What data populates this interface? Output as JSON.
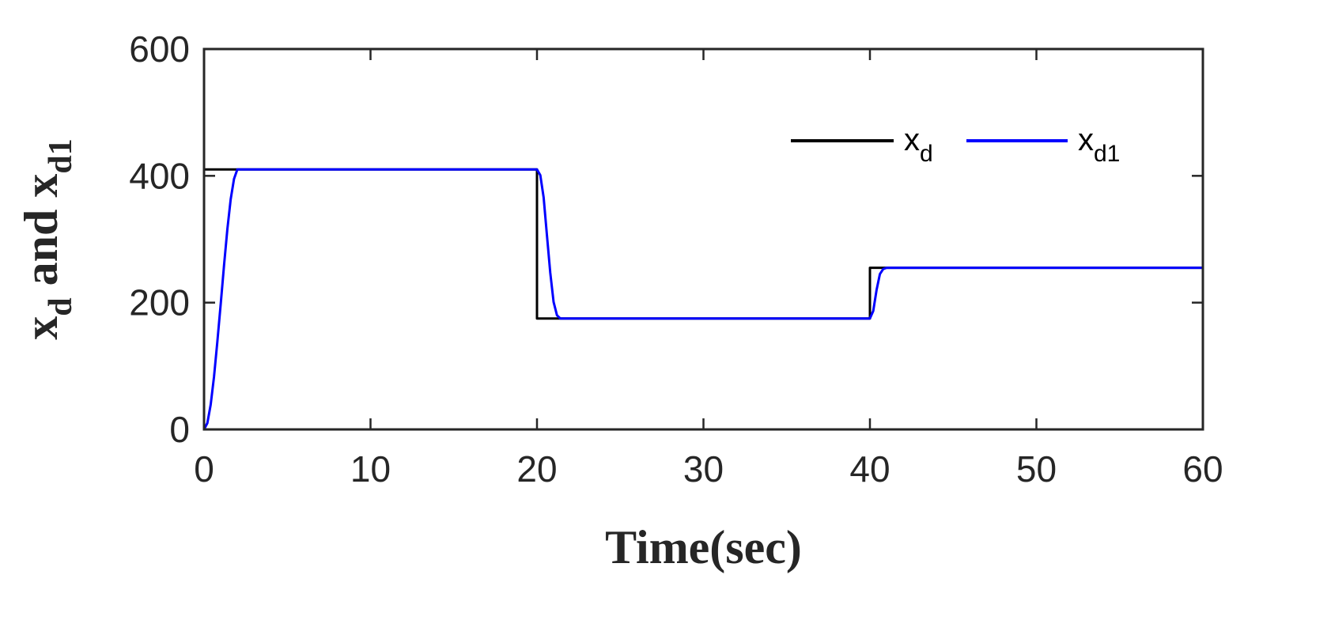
{
  "chart_data": {
    "type": "line",
    "xlabel": "Time(sec)",
    "ylabel": {
      "parts": [
        {
          "text": "x",
          "sub": "d"
        },
        {
          "text": " and x",
          "sub": "d1"
        }
      ]
    },
    "xlim": [
      0,
      60
    ],
    "ylim": [
      0,
      600
    ],
    "xticks": [
      0,
      10,
      20,
      30,
      40,
      50,
      60
    ],
    "yticks": [
      0,
      200,
      400,
      600
    ],
    "xtick_labels": [
      "0",
      "10",
      "20",
      "30",
      "40",
      "50",
      "60"
    ],
    "ytick_labels": [
      "0",
      "200",
      "400",
      "600"
    ],
    "grid": false,
    "legend": {
      "placement": "top-right",
      "orientation": "horizontal",
      "entries": [
        {
          "base": "x",
          "sub": "d",
          "color": "#000000"
        },
        {
          "base": "x",
          "sub": "d1",
          "color": "#0000ff"
        }
      ]
    },
    "series": [
      {
        "label_base": "x",
        "label_sub": "d",
        "color": "#000000",
        "x": [
          0,
          0,
          20,
          20,
          40,
          40,
          60
        ],
        "y": [
          0,
          410,
          410,
          175,
          175,
          255,
          255
        ]
      },
      {
        "label_base": "x",
        "label_sub": "d1",
        "color": "#0000ff",
        "x": [
          0,
          0.2,
          0.4,
          0.6,
          0.8,
          1.0,
          1.2,
          1.4,
          1.6,
          1.8,
          2.0,
          20.0,
          20.2,
          20.4,
          20.6,
          20.8,
          21.0,
          21.2,
          21.4,
          40.0,
          40.2,
          40.4,
          40.6,
          40.8,
          41.0,
          60.0
        ],
        "y": [
          0,
          10,
          39,
          83,
          138,
          198,
          259,
          316,
          363,
          395,
          410,
          410,
          401,
          366,
          306,
          247,
          201,
          180,
          175,
          175,
          187,
          220,
          245,
          253,
          255,
          255
        ]
      }
    ]
  }
}
